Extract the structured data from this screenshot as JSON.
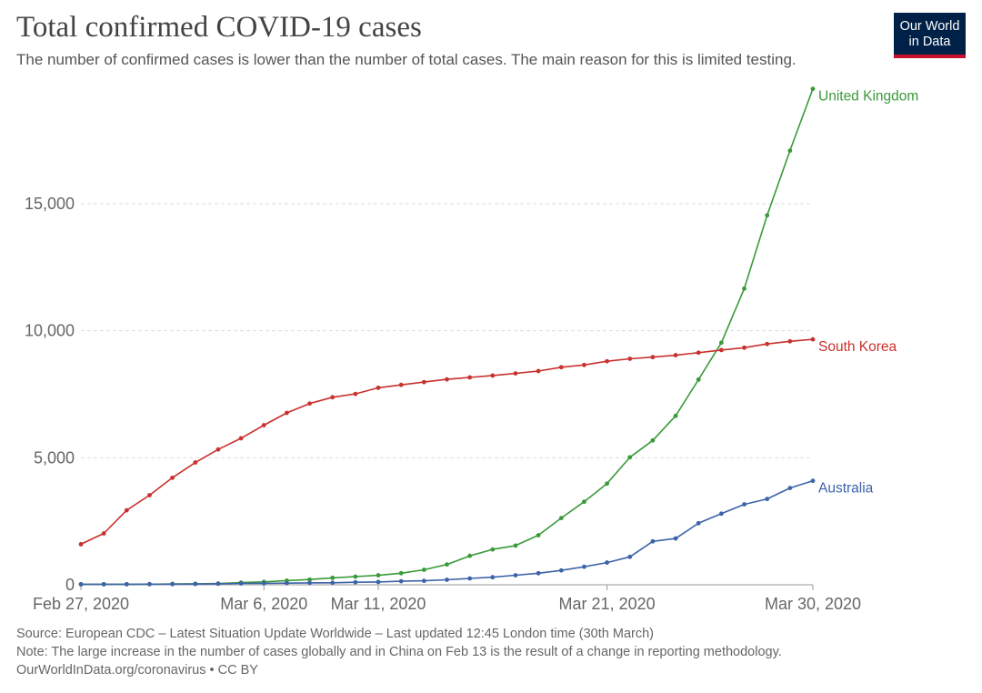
{
  "header": {
    "title": "Total confirmed COVID-19 cases",
    "subtitle": "The number of confirmed cases is lower than the number of total cases. The main reason for this is limited testing."
  },
  "logo": {
    "line1": "Our World",
    "line2": "in Data",
    "bg_color": "#002147",
    "accent_color": "#c8102e"
  },
  "footer": {
    "source": "Source: European CDC – Latest Situation Update Worldwide – Last updated 12:45 London time (30th March)",
    "note": "Note: The large increase in the number of cases globally and in China on Feb 13 is the result of a change in reporting methodology.",
    "credit": "OurWorldInData.org/coronavirus • CC BY"
  },
  "chart_data": {
    "type": "line",
    "x": [
      "2020-02-27",
      "2020-02-28",
      "2020-02-29",
      "2020-03-01",
      "2020-03-02",
      "2020-03-03",
      "2020-03-04",
      "2020-03-05",
      "2020-03-06",
      "2020-03-07",
      "2020-03-08",
      "2020-03-09",
      "2020-03-10",
      "2020-03-11",
      "2020-03-12",
      "2020-03-13",
      "2020-03-14",
      "2020-03-15",
      "2020-03-16",
      "2020-03-17",
      "2020-03-18",
      "2020-03-19",
      "2020-03-20",
      "2020-03-21",
      "2020-03-22",
      "2020-03-23",
      "2020-03-24",
      "2020-03-25",
      "2020-03-26",
      "2020-03-27",
      "2020-03-28",
      "2020-03-29",
      "2020-03-30"
    ],
    "x_ticks": [
      {
        "date": "2020-02-27",
        "label": "Feb 27, 2020"
      },
      {
        "date": "2020-03-06",
        "label": "Mar 6, 2020"
      },
      {
        "date": "2020-03-11",
        "label": "Mar 11, 2020"
      },
      {
        "date": "2020-03-21",
        "label": "Mar 21, 2020"
      },
      {
        "date": "2020-03-30",
        "label": "Mar 30, 2020"
      }
    ],
    "y_ticks": [
      {
        "value": 0,
        "label": "0"
      },
      {
        "value": 5000,
        "label": "5,000"
      },
      {
        "value": 10000,
        "label": "10,000"
      },
      {
        "value": 15000,
        "label": "15,000"
      }
    ],
    "ylim": [
      0,
      19500
    ],
    "grid": "horizontal dashed",
    "legend": "inline labels at line ends",
    "series": [
      {
        "name": "United Kingdom",
        "color": "#3a9a3a",
        "values": [
          13,
          15,
          20,
          23,
          36,
          40,
          51,
          85,
          115,
          163,
          206,
          273,
          321,
          373,
          456,
          590,
          798,
          1140,
          1391,
          1543,
          1950,
          2626,
          3269,
          3983,
          5018,
          5683,
          6650,
          8077,
          9529,
          11658,
          14543,
          17089,
          19522
        ]
      },
      {
        "name": "South Korea",
        "color": "#c8312e",
        "values": [
          1595,
          2022,
          2931,
          3526,
          4212,
          4812,
          5328,
          5766,
          6284,
          6767,
          7134,
          7382,
          7513,
          7755,
          7869,
          7979,
          8086,
          8162,
          8236,
          8320,
          8413,
          8565,
          8652,
          8799,
          8897,
          8961,
          9037,
          9137,
          9241,
          9332,
          9478,
          9583,
          9661
        ]
      },
      {
        "name": "Australia",
        "color": "#3d63a8",
        "values": [
          23,
          23,
          23,
          25,
          26,
          30,
          39,
          52,
          59,
          63,
          74,
          80,
          100,
          112,
          140,
          156,
          198,
          249,
          298,
          375,
          454,
          565,
          709,
          874,
          1098,
          1709,
          1823,
          2423,
          2799,
          3166,
          3378,
          3809,
          4093
        ]
      }
    ]
  }
}
